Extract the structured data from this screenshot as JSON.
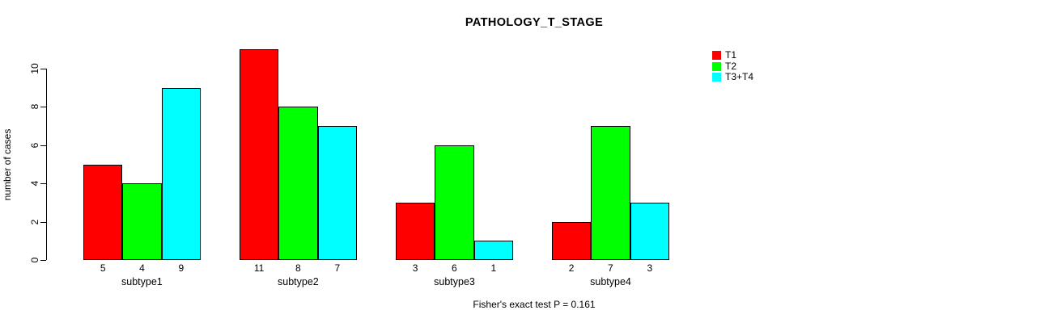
{
  "chart_data": {
    "type": "bar",
    "title": "PATHOLOGY_T_STAGE",
    "ylabel": "number of cases",
    "xlabel": "",
    "categories": [
      "subtype1",
      "subtype2",
      "subtype3",
      "subtype4"
    ],
    "series": [
      {
        "name": "T1",
        "color": "#FF0000",
        "values": [
          5,
          11,
          3,
          2
        ]
      },
      {
        "name": "T2",
        "color": "#00FF00",
        "values": [
          4,
          8,
          6,
          7
        ]
      },
      {
        "name": "T3+T4",
        "color": "#00FFFF",
        "values": [
          9,
          7,
          1,
          3
        ]
      }
    ],
    "yticks": [
      0,
      2,
      4,
      6,
      8,
      10
    ],
    "ylim": [
      0,
      11
    ],
    "bar_value_labels_shown": true,
    "grid": false,
    "legend_position": "right",
    "footer": "Fisher's exact test P = 0.161"
  }
}
